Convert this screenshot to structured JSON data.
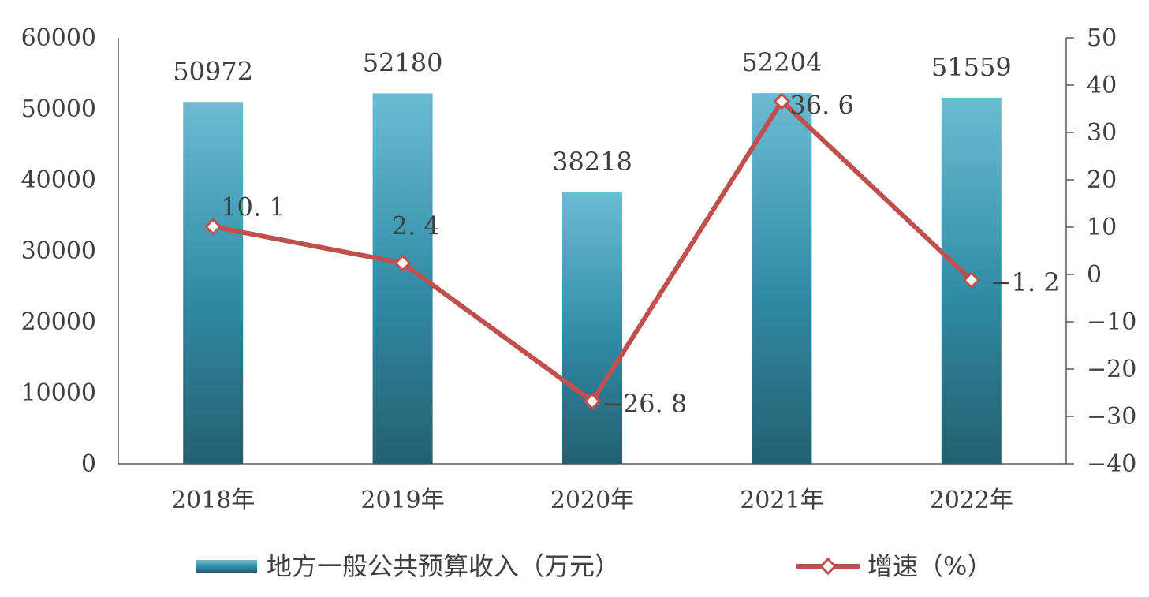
{
  "chart_data": {
    "type": "bar",
    "categories": [
      "2018年",
      "2019年",
      "2020年",
      "2021年",
      "2022年"
    ],
    "series": [
      {
        "name": "地方一般公共预算收入（万元）",
        "type": "bar",
        "axis": "left",
        "values": [
          50972,
          52180,
          38218,
          52204,
          51559
        ],
        "labels": [
          "50972",
          "52180",
          "38218",
          "52204",
          "51559"
        ],
        "color": "#2f7f99"
      },
      {
        "name": "增速（%）",
        "type": "line",
        "axis": "right",
        "values": [
          10.1,
          2.4,
          -26.8,
          36.6,
          -1.2
        ],
        "labels": [
          "10. 1",
          "2. 4",
          "-26. 8",
          "36. 6",
          "-1. 2"
        ],
        "color": "#c0504d"
      }
    ],
    "y_left": {
      "min": 0,
      "max": 60000,
      "ticks": [
        "0",
        "10000",
        "20000",
        "30000",
        "40000",
        "50000",
        "60000"
      ]
    },
    "y_right": {
      "min": -40,
      "max": 50,
      "ticks": [
        "-40",
        "-30",
        "-20",
        "-10",
        "0",
        "10",
        "20",
        "30",
        "40",
        "50"
      ]
    },
    "legend_position": "bottom",
    "grid": false
  }
}
